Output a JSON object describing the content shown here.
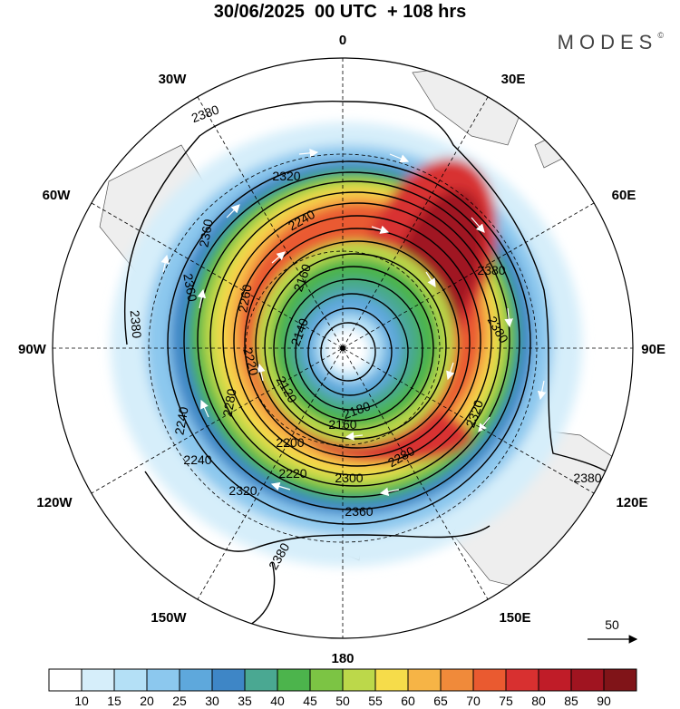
{
  "title": "30/06/2025  00 UTC  + 108 hrs",
  "brand": "MODES",
  "brand_mark": "©",
  "longitude_labels": {
    "n": "0",
    "ne30": "30E",
    "ne60": "60E",
    "e": "90E",
    "se120": "120E",
    "se150": "150E",
    "s": "180",
    "sw150": "150W",
    "sw120": "120W",
    "w": "90W",
    "nw60": "60W",
    "nw30": "30W"
  },
  "contour_labels": [
    {
      "text": "2380",
      "angle": -20
    },
    {
      "text": "2380",
      "angle": 0
    },
    {
      "text": "2380",
      "angle": 0
    },
    {
      "text": "2380",
      "angle": 85
    },
    {
      "text": "2380",
      "angle": -60
    },
    {
      "text": "2380",
      "angle": 60
    },
    {
      "text": "2360",
      "angle": 0
    },
    {
      "text": "2360",
      "angle": -80
    },
    {
      "text": "2360",
      "angle": 80
    },
    {
      "text": "2320",
      "angle": 0
    },
    {
      "text": "2320",
      "angle": 0
    },
    {
      "text": "2320",
      "angle": -70
    },
    {
      "text": "2300",
      "angle": 0
    },
    {
      "text": "2280",
      "angle": -30
    },
    {
      "text": "2280",
      "angle": -80
    },
    {
      "text": "2260",
      "angle": -80
    },
    {
      "text": "2240",
      "angle": -30
    },
    {
      "text": "2240",
      "angle": -80
    },
    {
      "text": "2240",
      "angle": 0
    },
    {
      "text": "2220",
      "angle": 75
    },
    {
      "text": "2220",
      "angle": 0
    },
    {
      "text": "2200",
      "angle": 0
    },
    {
      "text": "2180",
      "angle": -20
    },
    {
      "text": "2160",
      "angle": 0
    },
    {
      "text": "2160",
      "angle": -70
    },
    {
      "text": "2140",
      "angle": -70
    },
    {
      "text": "2120",
      "angle": 60
    }
  ],
  "reference_vector": {
    "label": "50"
  },
  "colorbar": {
    "ticks": [
      "10",
      "15",
      "20",
      "25",
      "30",
      "35",
      "40",
      "45",
      "50",
      "55",
      "60",
      "65",
      "70",
      "75",
      "80",
      "85",
      "90"
    ],
    "colors": [
      "#ffffff",
      "#d6eefa",
      "#b4e0f6",
      "#8cc8ee",
      "#5ea8dc",
      "#3e86c6",
      "#4aa892",
      "#4cb44c",
      "#7cc444",
      "#bcd84a",
      "#f6dc4a",
      "#f6b446",
      "#f08a3a",
      "#ea5a30",
      "#d83030",
      "#c01c28",
      "#a01420",
      "#801418"
    ]
  }
}
